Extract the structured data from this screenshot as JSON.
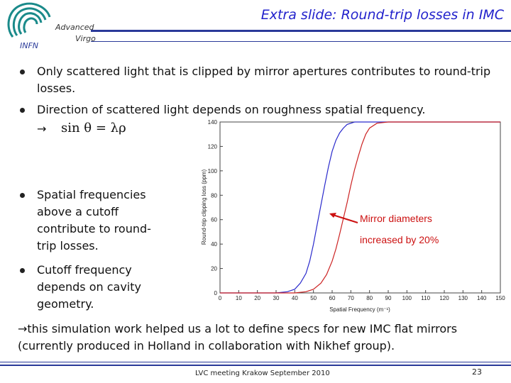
{
  "header": {
    "title": "Extra slide: Round-trip losses in IMC",
    "logo": {
      "line1": "Advanced",
      "line2": "Virgo"
    },
    "lab": "INFN"
  },
  "bullets": [
    {
      "text": "Only scattered light that is clipped by mirror apertures contributes to round-trip losses."
    },
    {
      "text": "Direction of scattered light depends on roughness spatial frequency."
    },
    {
      "text": "Spatial frequencies above a cutoff contribute to round-trip losses."
    },
    {
      "text": "Cutoff frequency depends on cavity geometry."
    }
  ],
  "arrow_symbol": "→",
  "formula": "sin θ = λρ",
  "conclusion": "→this simulation work helped us a lot to define specs for new IMC flat mirrors (currently produced in Holland in collaboration with Nikhef group).",
  "footer": {
    "meeting": "LVC meeting Krakow September 2010",
    "page": "23"
  },
  "colors": {
    "title": "#2222cc",
    "blue_curve": "#2a2acc",
    "red_curve": "#cc2222",
    "annotation": "#cc1111",
    "rule": "#2a3a99"
  },
  "chart_data": {
    "type": "line",
    "xlabel": "Spatial Frequency (m⁻¹)",
    "ylabel": "Round-trip clipping loss (ppm)",
    "xlim": [
      0,
      150
    ],
    "ylim": [
      0,
      140
    ],
    "xticks": [
      0,
      10,
      20,
      30,
      40,
      50,
      60,
      70,
      80,
      90,
      100,
      110,
      120,
      130,
      140,
      150
    ],
    "yticks": [
      0,
      20,
      40,
      60,
      80,
      100,
      120,
      140
    ],
    "grid": false,
    "annotation": {
      "line1": "Mirror diameters",
      "line2": "increased by 20%"
    },
    "series": [
      {
        "color": "#2a2acc",
        "x": [
          0,
          30,
          36,
          40,
          43,
          46,
          48,
          50,
          52,
          54,
          56,
          58,
          60,
          62,
          64,
          66,
          68,
          72,
          76,
          80,
          150
        ],
        "y": [
          0,
          0,
          1,
          3,
          8,
          16,
          26,
          40,
          56,
          72,
          88,
          103,
          116,
          125,
          131,
          135,
          138,
          140,
          140,
          140,
          140
        ]
      },
      {
        "color": "#cc2222",
        "x": [
          0,
          40,
          46,
          50,
          54,
          57,
          60,
          62,
          64,
          66,
          68,
          70,
          72,
          74,
          76,
          78,
          80,
          84,
          90,
          150
        ],
        "y": [
          0,
          0,
          1,
          3,
          8,
          15,
          26,
          36,
          48,
          61,
          74,
          88,
          101,
          112,
          122,
          130,
          135,
          139,
          140,
          140
        ]
      }
    ]
  }
}
